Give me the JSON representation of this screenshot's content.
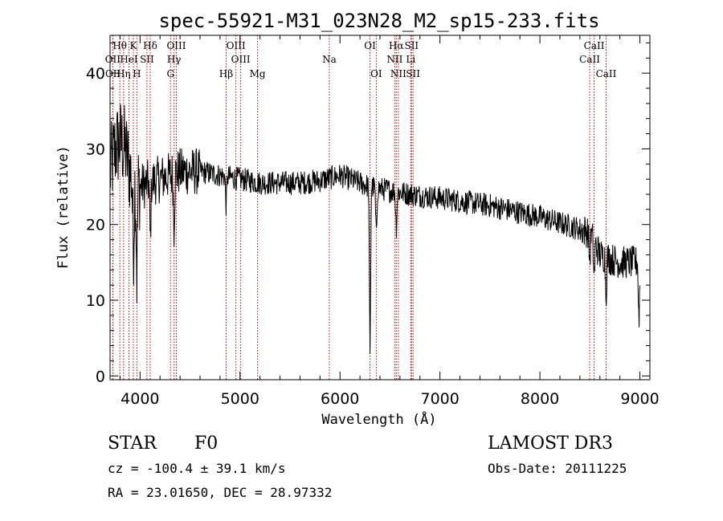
{
  "chart_data": {
    "type": "line",
    "title": "spec-55921-M31_023N28_M2_sp15-233.fits",
    "xlabel": "Wavelength (Å)",
    "ylabel": "Flux (relative)",
    "xlim": [
      3700,
      9100
    ],
    "ylim": [
      -0.5,
      45
    ],
    "x_ticks": [
      4000,
      5000,
      6000,
      7000,
      8000,
      9000
    ],
    "y_ticks": [
      0,
      10,
      20,
      30,
      40
    ],
    "line_color": "#000000",
    "marker_color": "#cc0000",
    "spectrum_anchors": {
      "x": [
        3700,
        3750,
        3800,
        3850,
        3900,
        3950,
        4000,
        4100,
        4200,
        4300,
        4400,
        4500,
        4600,
        4800,
        5000,
        5200,
        5400,
        5600,
        5800,
        6000,
        6200,
        6300,
        6500,
        6700,
        7000,
        7500,
        8000,
        8500,
        8600,
        8700,
        8800,
        8900,
        9000
      ],
      "y": [
        27,
        30,
        31,
        30,
        27,
        25,
        25,
        25.5,
        26,
        26.5,
        27,
        27,
        27,
        26.5,
        26,
        25.5,
        25.5,
        25.5,
        25.8,
        26.5,
        25.5,
        25,
        24.5,
        24,
        23.5,
        22.5,
        21,
        19,
        16,
        15.5,
        15,
        15,
        15
      ]
    },
    "absorption_dips": [
      {
        "x": 3933,
        "depth": 10
      },
      {
        "x": 3968,
        "depth": 12
      },
      {
        "x": 4102,
        "depth": 8
      },
      {
        "x": 4340,
        "depth": 7
      },
      {
        "x": 4861,
        "depth": 4
      },
      {
        "x": 6300,
        "depth": 23
      },
      {
        "x": 6363,
        "depth": 7
      },
      {
        "x": 6563,
        "depth": 5
      },
      {
        "x": 8498,
        "depth": 4
      },
      {
        "x": 8542,
        "depth": 5
      },
      {
        "x": 8662,
        "depth": 5
      },
      {
        "x": 8990,
        "depth": 8
      }
    ],
    "spectral_lines": [
      {
        "label": "Hθ",
        "x": 3798,
        "row": 0
      },
      {
        "label": "OII",
        "x": 3727,
        "row": 1
      },
      {
        "label": "OII",
        "x": 3729,
        "row": 2
      },
      {
        "label": "HeI",
        "x": 3889,
        "row": 1
      },
      {
        "label": "Hη",
        "x": 3835,
        "row": 2
      },
      {
        "label": "K",
        "x": 3933,
        "row": 0
      },
      {
        "label": "SII",
        "x": 4069,
        "row": 1
      },
      {
        "label": "H",
        "x": 3968,
        "row": 2
      },
      {
        "label": "Hδ",
        "x": 4102,
        "row": 0
      },
      {
        "label": "OIII",
        "x": 4363,
        "row": 0
      },
      {
        "label": "Hγ",
        "x": 4340,
        "row": 1
      },
      {
        "label": "G",
        "x": 4305,
        "row": 2
      },
      {
        "label": "OIII",
        "x": 4959,
        "row": 0
      },
      {
        "label": "OIII",
        "x": 5007,
        "row": 1
      },
      {
        "label": "Hβ",
        "x": 4861,
        "row": 2
      },
      {
        "label": "Mg",
        "x": 5175,
        "row": 2
      },
      {
        "label": "Na",
        "x": 5893,
        "row": 1
      },
      {
        "label": "OI",
        "x": 6300,
        "row": 0
      },
      {
        "label": "OI",
        "x": 6363,
        "row": 2
      },
      {
        "label": "Hα",
        "x": 6563,
        "row": 0
      },
      {
        "label": "SII",
        "x": 6716,
        "row": 0
      },
      {
        "label": "NII",
        "x": 6548,
        "row": 1
      },
      {
        "label": "Li",
        "x": 6708,
        "row": 1
      },
      {
        "label": "NII",
        "x": 6584,
        "row": 2
      },
      {
        "label": "SII",
        "x": 6731,
        "row": 2
      },
      {
        "label": "CaII",
        "x": 8542,
        "row": 0
      },
      {
        "label": "CaII",
        "x": 8498,
        "row": 1
      },
      {
        "label": "CaII",
        "x": 8662,
        "row": 2
      }
    ]
  },
  "info": {
    "class": "STAR",
    "subclass": "F0",
    "survey": "LAMOST DR3",
    "cz": "cz = -100.4 ± 39.1 km/s",
    "obs_date": "Obs-Date: 20111225",
    "coords": "RA =  23.01650, DEC =  28.97332"
  }
}
